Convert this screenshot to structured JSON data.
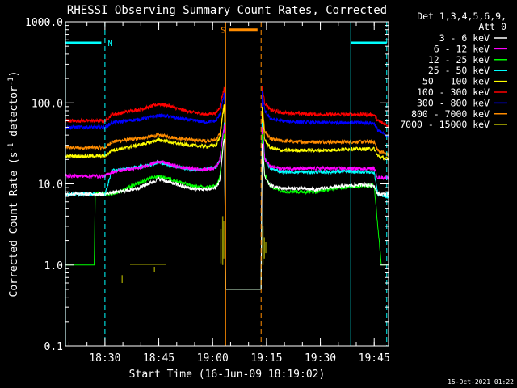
{
  "page": {
    "background": "#000000",
    "foreground": "#ffffff"
  },
  "chart_data": {
    "type": "line",
    "title": "RHESSI Observing Summary Count Rates, Corrected",
    "xlabel": "Start Time (16-Jun-09 18:19:02)",
    "ylabel_parts": [
      "Corrected Count Rate (s",
      "-1",
      " detector",
      "-1",
      ")"
    ],
    "yscale": "log",
    "ylim": [
      0.1,
      1000
    ],
    "xlim_min": [
      -17,
      73
    ],
    "x_units": "minutes from 18:36:00 (axis tick labels show clock time)",
    "y_ticks": [
      {
        "value": 0.1,
        "label": "0.1"
      },
      {
        "value": 1,
        "label": "1.0"
      },
      {
        "value": 10,
        "label": "10.0"
      },
      {
        "value": 100,
        "label": "100.0"
      },
      {
        "value": 1000,
        "label": "1000.0"
      }
    ],
    "x_ticks": [
      {
        "min": -6,
        "label": "18:30"
      },
      {
        "min": 9,
        "label": "18:45"
      },
      {
        "min": 24,
        "label": "19:00"
      },
      {
        "min": 39,
        "label": "19:15"
      },
      {
        "min": 54,
        "label": "19:30"
      },
      {
        "min": 69,
        "label": "19:45"
      }
    ],
    "legend": {
      "placement": "right",
      "header": [
        "Det 1,3,4,5,6,9,",
        "Att 0"
      ]
    },
    "series": [
      {
        "name": "3 - 6 keV",
        "color": "#ffffff",
        "points": [
          [
            -17,
            7.5
          ],
          [
            -6,
            7.5
          ],
          [
            -4,
            7.8
          ],
          [
            -2,
            8
          ],
          [
            0,
            8.3
          ],
          [
            3,
            8.8
          ],
          [
            6,
            10
          ],
          [
            9,
            11.5
          ],
          [
            12,
            10.5
          ],
          [
            15,
            9.5
          ],
          [
            18,
            8.8
          ],
          [
            22,
            8.5
          ],
          [
            25,
            9
          ],
          [
            26,
            11
          ],
          [
            27,
            30
          ],
          [
            27.3,
            38
          ],
          [
            27.6,
            0.5
          ],
          [
            37.5,
            0.5
          ],
          [
            37.8,
            32
          ],
          [
            38.5,
            12
          ],
          [
            40,
            9.5
          ],
          [
            43,
            8.8
          ],
          [
            48,
            8.8
          ],
          [
            53,
            8.5
          ],
          [
            56,
            9
          ],
          [
            59,
            9.2
          ],
          [
            62,
            9.5
          ],
          [
            66,
            9.8
          ],
          [
            69,
            9.5
          ],
          [
            70,
            7.5
          ],
          [
            73,
            7.5
          ]
        ]
      },
      {
        "name": "6 - 12 keV",
        "color": "#ff00ff",
        "points": [
          [
            -17,
            12.5
          ],
          [
            -6,
            12.5
          ],
          [
            -4,
            14
          ],
          [
            -2,
            14.5
          ],
          [
            0,
            15
          ],
          [
            3,
            15.5
          ],
          [
            6,
            17
          ],
          [
            9,
            19
          ],
          [
            12,
            17.5
          ],
          [
            15,
            16
          ],
          [
            18,
            15.5
          ],
          [
            22,
            15
          ],
          [
            25,
            16
          ],
          [
            26,
            20
          ],
          [
            27,
            45
          ],
          [
            27.3,
            55
          ],
          [
            27.6,
            0.5
          ],
          [
            37.5,
            0.5
          ],
          [
            37.8,
            52
          ],
          [
            38.5,
            20
          ],
          [
            40,
            16.5
          ],
          [
            43,
            15.5
          ],
          [
            48,
            15.5
          ],
          [
            53,
            15.5
          ],
          [
            56,
            15.5
          ],
          [
            59,
            15.5
          ],
          [
            62,
            15.5
          ],
          [
            66,
            15.5
          ],
          [
            69,
            15.5
          ],
          [
            70,
            12
          ],
          [
            73,
            12
          ]
        ]
      },
      {
        "name": "12 - 25 keV",
        "color": "#00ff00",
        "points": [
          [
            -17,
            1
          ],
          [
            -9,
            1
          ],
          [
            -8.7,
            7.5
          ],
          [
            -6,
            7.5
          ],
          [
            -4,
            7.6
          ],
          [
            -2,
            8
          ],
          [
            0,
            8.8
          ],
          [
            3,
            10
          ],
          [
            6,
            11.5
          ],
          [
            9,
            12.5
          ],
          [
            12,
            11.5
          ],
          [
            15,
            10.5
          ],
          [
            18,
            9.5
          ],
          [
            22,
            9
          ],
          [
            25,
            9.5
          ],
          [
            26,
            12
          ],
          [
            27,
            35
          ],
          [
            27.3,
            45
          ],
          [
            27.6,
            0.5
          ],
          [
            37.5,
            0.5
          ],
          [
            37.8,
            40
          ],
          [
            38.5,
            13
          ],
          [
            40,
            9.5
          ],
          [
            43,
            8.2
          ],
          [
            48,
            8
          ],
          [
            53,
            8
          ],
          [
            56,
            8.5
          ],
          [
            59,
            9
          ],
          [
            62,
            9.2
          ],
          [
            66,
            9.5
          ],
          [
            69,
            9.5
          ],
          [
            70,
            3
          ],
          [
            71,
            1
          ],
          [
            73,
            1
          ]
        ]
      },
      {
        "name": "25 - 50 keV",
        "color": "#00ffff",
        "points": [
          [
            -17,
            7.5
          ],
          [
            -6,
            7.5
          ],
          [
            -4,
            14.5
          ],
          [
            -2,
            14.8
          ],
          [
            0,
            15.5
          ],
          [
            3,
            16
          ],
          [
            6,
            17
          ],
          [
            9,
            18.5
          ],
          [
            12,
            17
          ],
          [
            15,
            16
          ],
          [
            18,
            15
          ],
          [
            22,
            15
          ],
          [
            25,
            16
          ],
          [
            26,
            20
          ],
          [
            27,
            45
          ],
          [
            27.3,
            58
          ],
          [
            27.6,
            0.5
          ],
          [
            37.5,
            0.5
          ],
          [
            37.8,
            55
          ],
          [
            38.5,
            21
          ],
          [
            40,
            15.5
          ],
          [
            43,
            14.2
          ],
          [
            48,
            14
          ],
          [
            53,
            14
          ],
          [
            56,
            14
          ],
          [
            59,
            14.2
          ],
          [
            62,
            14.2
          ],
          [
            66,
            14
          ],
          [
            69,
            14
          ],
          [
            70,
            7.5
          ],
          [
            73,
            6.8
          ]
        ]
      },
      {
        "name": "50 - 100 keV",
        "color": "#ffff00",
        "points": [
          [
            -17,
            22
          ],
          [
            -6,
            22
          ],
          [
            -4,
            26
          ],
          [
            -2,
            27
          ],
          [
            0,
            28
          ],
          [
            3,
            30
          ],
          [
            6,
            32
          ],
          [
            9,
            35
          ],
          [
            12,
            33
          ],
          [
            15,
            31
          ],
          [
            18,
            30
          ],
          [
            22,
            29
          ],
          [
            25,
            30
          ],
          [
            26,
            38
          ],
          [
            27,
            80
          ],
          [
            27.3,
            95
          ],
          [
            27.6,
            0.5
          ],
          [
            37.5,
            0.5
          ],
          [
            37.8,
            85
          ],
          [
            38.5,
            35
          ],
          [
            40,
            28
          ],
          [
            43,
            26
          ],
          [
            48,
            26
          ],
          [
            53,
            26
          ],
          [
            56,
            26
          ],
          [
            59,
            26.5
          ],
          [
            62,
            27
          ],
          [
            66,
            27
          ],
          [
            69,
            27
          ],
          [
            70,
            22
          ],
          [
            73,
            20
          ]
        ]
      },
      {
        "name": "100 - 300 keV",
        "color": "#ff0000",
        "points": [
          [
            -17,
            60
          ],
          [
            -6,
            60
          ],
          [
            -4,
            72
          ],
          [
            -2,
            74
          ],
          [
            0,
            78
          ],
          [
            3,
            82
          ],
          [
            6,
            88
          ],
          [
            9,
            97
          ],
          [
            12,
            92
          ],
          [
            15,
            83
          ],
          [
            18,
            77
          ],
          [
            22,
            72
          ],
          [
            25,
            75
          ],
          [
            26,
            90
          ],
          [
            27,
            140
          ],
          [
            27.3,
            160
          ],
          [
            27.6,
            0.5
          ],
          [
            37.5,
            0.5
          ],
          [
            37.8,
            160
          ],
          [
            38.5,
            100
          ],
          [
            40,
            82
          ],
          [
            43,
            76
          ],
          [
            48,
            74
          ],
          [
            53,
            72
          ],
          [
            56,
            72
          ],
          [
            59,
            72
          ],
          [
            62,
            72
          ],
          [
            66,
            72
          ],
          [
            69,
            71
          ],
          [
            70,
            60
          ],
          [
            73,
            52
          ]
        ]
      },
      {
        "name": "300 - 800 keV",
        "color": "#0000ff",
        "points": [
          [
            -17,
            50
          ],
          [
            -6,
            50
          ],
          [
            -4,
            57
          ],
          [
            -2,
            58
          ],
          [
            0,
            60
          ],
          [
            3,
            62
          ],
          [
            6,
            65
          ],
          [
            9,
            70
          ],
          [
            12,
            68
          ],
          [
            15,
            64
          ],
          [
            18,
            61
          ],
          [
            22,
            58
          ],
          [
            25,
            60
          ],
          [
            26,
            72
          ],
          [
            27,
            115
          ],
          [
            27.3,
            135
          ],
          [
            27.6,
            0.5
          ],
          [
            37.5,
            0.5
          ],
          [
            37.8,
            135
          ],
          [
            38.5,
            80
          ],
          [
            40,
            64
          ],
          [
            43,
            60
          ],
          [
            48,
            58
          ],
          [
            53,
            57
          ],
          [
            56,
            57
          ],
          [
            59,
            57
          ],
          [
            62,
            57
          ],
          [
            66,
            57
          ],
          [
            69,
            56
          ],
          [
            70,
            46
          ],
          [
            73,
            38
          ]
        ]
      },
      {
        "name": "800 - 7000 keV",
        "color": "#ff8c00",
        "points": [
          [
            -17,
            28
          ],
          [
            -6,
            28
          ],
          [
            -4,
            33
          ],
          [
            -2,
            34
          ],
          [
            0,
            35
          ],
          [
            3,
            36
          ],
          [
            6,
            38
          ],
          [
            9,
            40
          ],
          [
            12,
            38
          ],
          [
            15,
            36
          ],
          [
            18,
            35
          ],
          [
            22,
            34
          ],
          [
            25,
            35
          ],
          [
            26,
            42
          ],
          [
            27,
            85
          ],
          [
            27.3,
            100
          ],
          [
            27.6,
            0.5
          ],
          [
            37.5,
            0.5
          ],
          [
            37.8,
            100
          ],
          [
            38.5,
            45
          ],
          [
            40,
            36
          ],
          [
            43,
            34
          ],
          [
            48,
            33
          ],
          [
            53,
            33
          ],
          [
            56,
            33
          ],
          [
            59,
            33
          ],
          [
            62,
            33
          ],
          [
            66,
            33
          ],
          [
            69,
            33
          ],
          [
            70,
            26
          ],
          [
            73,
            23
          ]
        ]
      },
      {
        "name": "7000 - 15000 keV",
        "color": "#8b8b00",
        "segments": [
          [
            [
              1,
              1.02
            ],
            [
              11,
              1.02
            ]
          ],
          [
            [
              7.8,
              0.95
            ],
            [
              7.8,
              0.82
            ]
          ],
          [
            [
              -1.2,
              0.75
            ],
            [
              -1.2,
              0.6
            ]
          ],
          [
            [
              26.3,
              1.05
            ],
            [
              26.3,
              2.8
            ]
          ],
          [
            [
              26.8,
              1
            ],
            [
              26.8,
              4
            ]
          ],
          [
            [
              27.1,
              1.2
            ],
            [
              27.1,
              3.5
            ]
          ],
          [
            [
              38,
              1
            ],
            [
              38,
              3
            ]
          ],
          [
            [
              38.4,
              1.2
            ],
            [
              38.4,
              2.2
            ]
          ],
          [
            [
              38.8,
              1.4
            ],
            [
              38.8,
              1.9
            ]
          ]
        ]
      }
    ],
    "annotations": [
      {
        "label": "N",
        "color": "#00ffff",
        "x_solid": -17,
        "x_dashed": -6,
        "bar": [
          -17,
          -7
        ],
        "y": 550
      },
      {
        "label": "S",
        "color": "#ff8c00",
        "x_solid": 27.6,
        "x_dashed": 37.5,
        "bar": [
          28.5,
          36.5
        ],
        "y": 800
      },
      {
        "label": "",
        "color": "#00ffff",
        "x_solid": 62.5,
        "x_dashed": 72.5,
        "bar": [
          62.5,
          72.5
        ],
        "y": 550
      }
    ]
  },
  "footer": {
    "timestamp": "15-Oct-2021 01:22"
  }
}
